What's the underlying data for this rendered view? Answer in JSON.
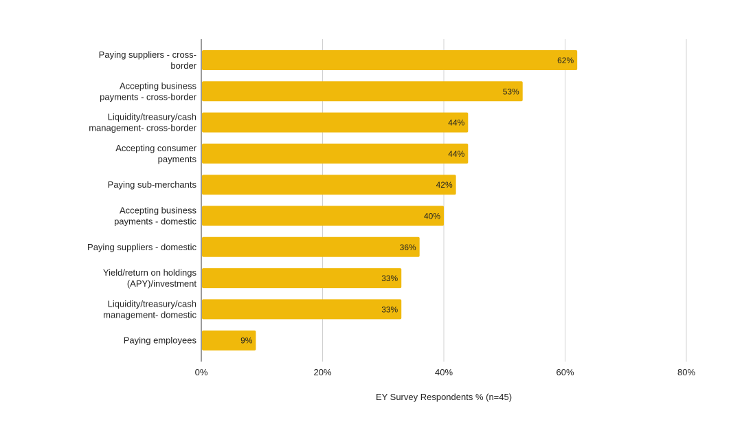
{
  "chart_data": {
    "type": "bar",
    "orientation": "horizontal",
    "title": "",
    "xlabel": "EY Survey Respondents % (n=45)",
    "ylabel": "",
    "xlim": [
      0,
      80
    ],
    "x_ticks": [
      0,
      20,
      40,
      60,
      80
    ],
    "x_tick_labels": [
      "0%",
      "20%",
      "40%",
      "60%",
      "80%"
    ],
    "grid": true,
    "legend": "none",
    "bar_color": "#F0B90B",
    "categories": [
      [
        "Paying suppliers - cross-",
        "border"
      ],
      [
        "Accepting business",
        "payments - cross-border"
      ],
      [
        "Liquidity/treasury/cash",
        "management- cross-border"
      ],
      [
        "Accepting consumer",
        "payments"
      ],
      [
        "Paying sub-merchants"
      ],
      [
        "Accepting business",
        "payments - domestic"
      ],
      [
        "Paying suppliers - domestic"
      ],
      [
        "Yield/return on holdings",
        "(APY)/investment"
      ],
      [
        "Liquidity/treasury/cash",
        "management- domestic"
      ],
      [
        "Paying employees"
      ]
    ],
    "values": [
      62,
      53,
      44,
      44,
      42,
      40,
      36,
      33,
      33,
      9
    ],
    "data_labels": [
      "62%",
      "53%",
      "44%",
      "44%",
      "42%",
      "40%",
      "36%",
      "33%",
      "33%",
      "9%"
    ]
  }
}
